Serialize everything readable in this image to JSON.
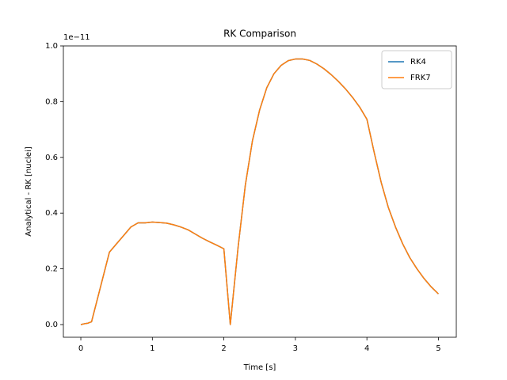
{
  "chart_data": {
    "type": "line",
    "title": "RK Comparison",
    "x_label": "Time [s]",
    "y_label": "Analytical - RK [nuclei]",
    "y_offset_label": "1e−11",
    "x": [
      0,
      0.05,
      0.1,
      0.15,
      0.2,
      0.3,
      0.4,
      0.5,
      0.6,
      0.7,
      0.8,
      0.9,
      1.0,
      1.1,
      1.2,
      1.3,
      1.4,
      1.5,
      1.6,
      1.7,
      1.8,
      1.9,
      2.0,
      2.09,
      2.2,
      2.3,
      2.4,
      2.5,
      2.6,
      2.7,
      2.8,
      2.9,
      3.0,
      3.1,
      3.2,
      3.3,
      3.4,
      3.5,
      3.6,
      3.7,
      3.8,
      3.9,
      4.0,
      4.1,
      4.2,
      4.3,
      4.4,
      4.5,
      4.6,
      4.7,
      4.8,
      4.9,
      5.0
    ],
    "series": [
      {
        "name": "RK4",
        "color": "#1f77b4",
        "values": [
          0,
          0.003,
          0.005,
          0.01,
          0.06,
          0.16,
          0.26,
          0.29,
          0.32,
          0.35,
          0.365,
          0.365,
          0.368,
          0.366,
          0.364,
          0.358,
          0.35,
          0.34,
          0.325,
          0.31,
          0.297,
          0.285,
          0.272,
          0.0,
          0.28,
          0.5,
          0.66,
          0.77,
          0.85,
          0.9,
          0.93,
          0.947,
          0.953,
          0.953,
          0.948,
          0.935,
          0.918,
          0.897,
          0.873,
          0.846,
          0.815,
          0.78,
          0.737,
          0.62,
          0.51,
          0.42,
          0.35,
          0.29,
          0.24,
          0.2,
          0.165,
          0.135,
          0.11
        ]
      },
      {
        "name": "FRK7",
        "color": "#ff7f0e",
        "values": [
          0,
          0.003,
          0.005,
          0.01,
          0.06,
          0.16,
          0.26,
          0.29,
          0.32,
          0.35,
          0.365,
          0.365,
          0.368,
          0.366,
          0.364,
          0.358,
          0.35,
          0.34,
          0.325,
          0.31,
          0.297,
          0.285,
          0.272,
          0.0,
          0.28,
          0.5,
          0.66,
          0.77,
          0.85,
          0.9,
          0.93,
          0.947,
          0.953,
          0.953,
          0.948,
          0.935,
          0.918,
          0.897,
          0.873,
          0.846,
          0.815,
          0.78,
          0.737,
          0.62,
          0.51,
          0.42,
          0.35,
          0.29,
          0.24,
          0.2,
          0.165,
          0.135,
          0.11
        ]
      }
    ],
    "xlim": [
      -0.244,
      5.25
    ],
    "xticks": [
      0,
      1,
      2,
      3,
      4,
      5
    ],
    "ylim": [
      -0.0455,
      1.0
    ],
    "yticks": [
      {
        "value": 0,
        "label": "0.0"
      },
      0.2,
      0.4,
      0.6,
      0.8,
      {
        "value": 1,
        "label": "1.0"
      }
    ],
    "legend": "upper right",
    "grid": false
  }
}
